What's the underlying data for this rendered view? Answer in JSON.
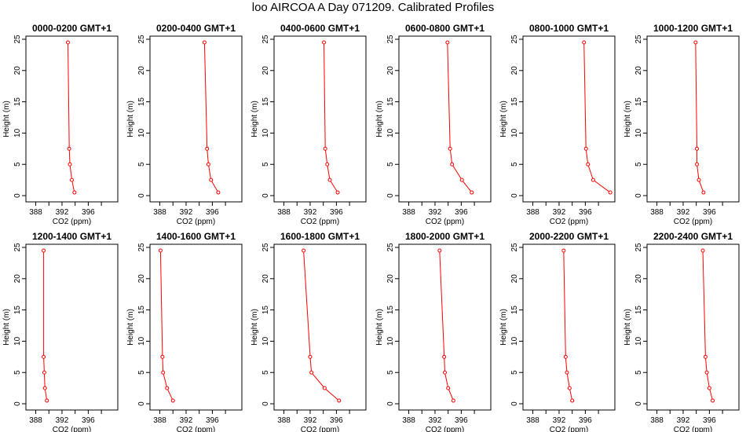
{
  "title": "loo AIRCOA A  Day 071209. Calibrated Profiles",
  "chart_data": {
    "type": "line",
    "xlabel": "CO2 (ppm)",
    "ylabel": "Height (m)",
    "xlim": [
      386.5,
      400.5
    ],
    "ylim": [
      -1,
      25.5
    ],
    "x_ticks": [
      388,
      392,
      396
    ],
    "x_minor_ticks": [
      390,
      394,
      398
    ],
    "y_ticks": [
      0,
      5,
      10,
      15,
      20,
      25
    ],
    "heights": [
      24.5,
      7.5,
      5.0,
      2.5,
      0.5
    ],
    "line_color": "#ff0000",
    "marker": "open-circle",
    "panels": [
      {
        "title": "0000-0200  GMT+1",
        "co2": [
          392.9,
          393.1,
          393.2,
          393.5,
          393.9
        ]
      },
      {
        "title": "0200-0400  GMT+1",
        "co2": [
          394.8,
          395.2,
          395.4,
          395.8,
          396.9
        ]
      },
      {
        "title": "0400-0600  GMT+1",
        "co2": [
          394.1,
          394.3,
          394.6,
          395.0,
          396.2
        ]
      },
      {
        "title": "0600-0800  GMT+1",
        "co2": [
          393.9,
          394.3,
          394.6,
          396.1,
          397.6
        ]
      },
      {
        "title": "0800-1000  GMT+1",
        "co2": [
          395.8,
          396.1,
          396.4,
          397.2,
          399.8
        ]
      },
      {
        "title": "1000-1200  GMT+1",
        "co2": [
          393.9,
          394.1,
          394.1,
          394.4,
          395.1
        ]
      },
      {
        "title": "1200-1400  GMT+1",
        "co2": [
          389.2,
          389.2,
          389.3,
          389.4,
          389.7
        ]
      },
      {
        "title": "1400-1600  GMT+1",
        "co2": [
          388.1,
          388.4,
          388.5,
          389.1,
          390.0
        ]
      },
      {
        "title": "1600-1800  GMT+1",
        "co2": [
          391.0,
          392.0,
          392.2,
          394.2,
          396.4
        ]
      },
      {
        "title": "1800-2000  GMT+1",
        "co2": [
          392.7,
          393.4,
          393.5,
          394.0,
          394.8
        ]
      },
      {
        "title": "2000-2200  GMT+1",
        "co2": [
          392.7,
          393.0,
          393.2,
          393.6,
          394.0
        ]
      },
      {
        "title": "2200-2400  GMT+1",
        "co2": [
          395.0,
          395.4,
          395.6,
          396.0,
          396.5
        ]
      }
    ]
  }
}
